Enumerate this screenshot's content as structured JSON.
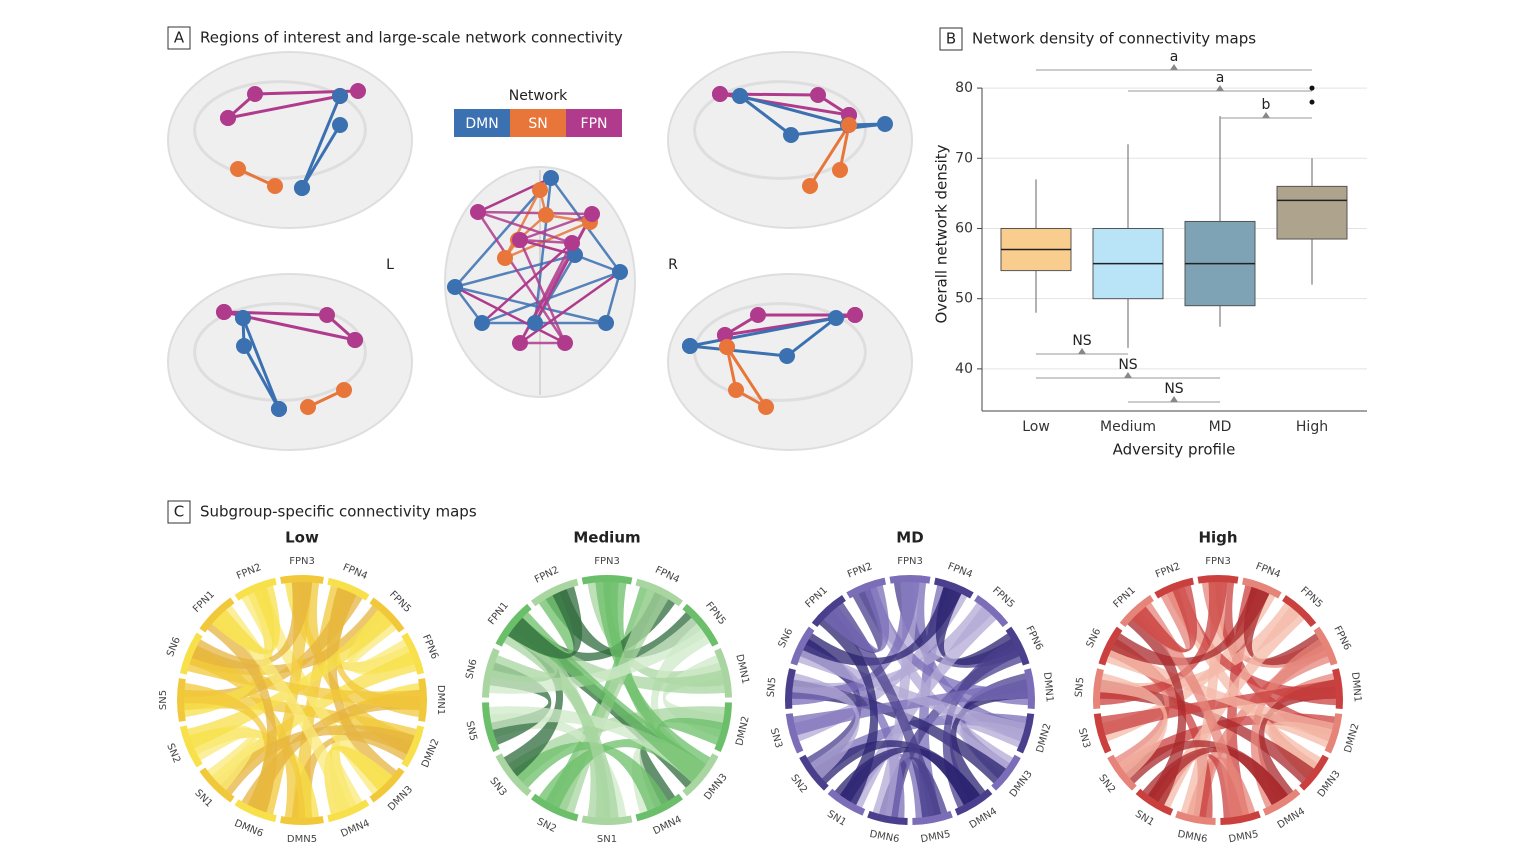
{
  "panel_a": {
    "letter": "A",
    "title": "Regions of interest and large-scale network connectivity",
    "legend_title": "Network",
    "networks": [
      {
        "name": "DMN",
        "color": "#3b70b1"
      },
      {
        "name": "SN",
        "color": "#e8763a"
      },
      {
        "name": "FPN",
        "color": "#b03b8c"
      }
    ],
    "left_label": "L",
    "right_label": "R"
  },
  "chart_data": {
    "type": "box",
    "letter": "B",
    "title": "Network density of connectivity maps",
    "xlabel": "Adversity profile",
    "ylabel": "Overall network density",
    "categories": [
      "Low",
      "Medium",
      "MD",
      "High"
    ],
    "whisker_low": [
      48,
      43,
      46,
      52
    ],
    "q1": [
      54,
      50,
      49,
      58.5
    ],
    "median": [
      57,
      55,
      55,
      64
    ],
    "q3": [
      60,
      60,
      61,
      66
    ],
    "whisker_high": [
      67,
      72,
      76,
      70
    ],
    "outliers": [
      [],
      [],
      [],
      [
        78,
        80
      ]
    ],
    "colors": [
      "#f9cd8e",
      "#b9e3f6",
      "#7ea3b5",
      "#aea38c"
    ],
    "ylim": [
      34,
      84
    ],
    "yticks": [
      40,
      50,
      60,
      70,
      80
    ],
    "grid": true,
    "annotations": [
      "a",
      "a",
      "b",
      "NS",
      "NS",
      "NS"
    ]
  },
  "panel_c": {
    "letter": "C",
    "title": "Subgroup-specific connectivity maps",
    "maps": [
      {
        "title": "Low",
        "palette": [
          "#f7e04a",
          "#f1c83a",
          "#e6b43f",
          "#f9ea7a"
        ],
        "nodes": [
          "FPN3",
          "FPN4",
          "FPN5",
          "FPN6",
          "DMN1",
          "DMN2",
          "DMN3",
          "DMN4",
          "DMN5",
          "DMN6",
          "SN1",
          "SN2",
          "SN5",
          "SN6",
          "FPN1",
          "FPN2"
        ]
      },
      {
        "title": "Medium",
        "palette": [
          "#a8d5a0",
          "#6cbf6a",
          "#2f6b3c",
          "#cfe9c8"
        ],
        "nodes": [
          "FPN3",
          "FPN4",
          "FPN5",
          "DMN1",
          "DMN2",
          "DMN3",
          "DMN4",
          "SN1",
          "SN2",
          "SN3",
          "SN5",
          "SN6",
          "FPN1",
          "FPN2"
        ]
      },
      {
        "title": "MD",
        "palette": [
          "#4a3f8c",
          "#7b6db8",
          "#b3aad6",
          "#2b2370"
        ],
        "nodes": [
          "FPN3",
          "FPN4",
          "FPN5",
          "FPN6",
          "DMN1",
          "DMN2",
          "DMN3",
          "DMN4",
          "DMN5",
          "DMN6",
          "SN1",
          "SN2",
          "SN3",
          "SN5",
          "SN6",
          "FPN1",
          "FPN2"
        ]
      },
      {
        "title": "High",
        "palette": [
          "#e6847a",
          "#c9403f",
          "#f4b9a8",
          "#a8282b"
        ],
        "nodes": [
          "FPN3",
          "FPN4",
          "FPN5",
          "FPN6",
          "DMN1",
          "DMN2",
          "DMN3",
          "DMN4",
          "DMN5",
          "DMN6",
          "SN1",
          "SN2",
          "SN3",
          "SN5",
          "SN6",
          "FPN1",
          "FPN2"
        ]
      }
    ]
  }
}
